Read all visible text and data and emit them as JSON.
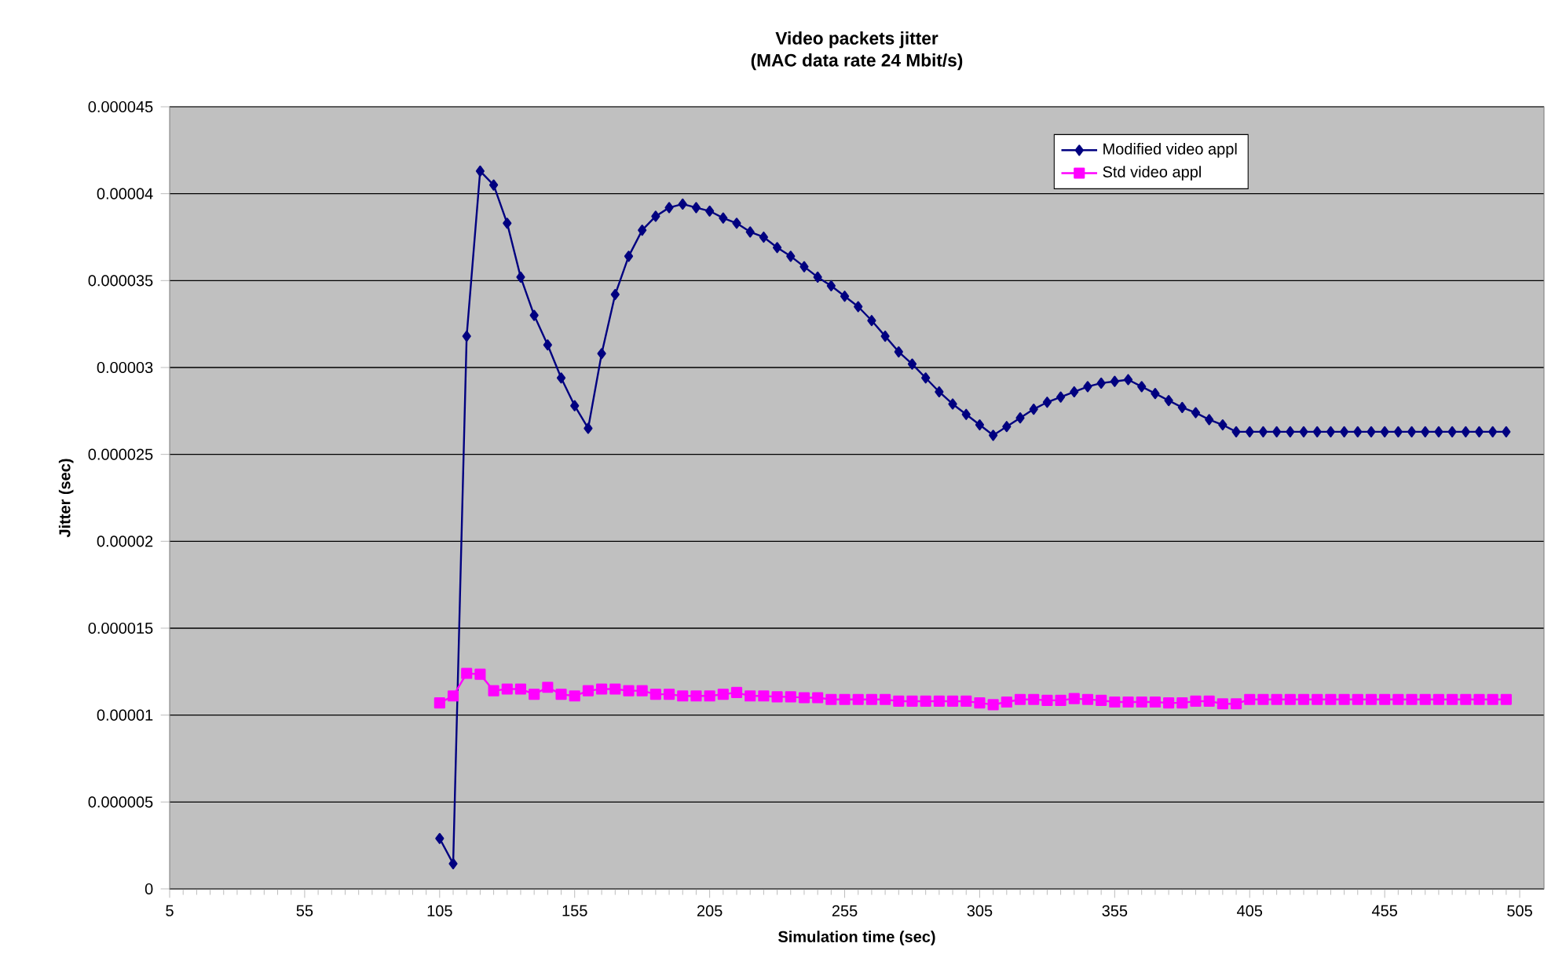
{
  "chart_data": {
    "type": "line",
    "title": "Video packets jitter",
    "subtitle": "(MAC data rate 24 Mbit/s)",
    "xlabel": "Simulation time (sec)",
    "ylabel": "Jitter (sec)",
    "x": [
      105,
      110,
      115,
      120,
      125,
      130,
      135,
      140,
      145,
      150,
      155,
      160,
      165,
      170,
      175,
      180,
      185,
      190,
      195,
      200,
      205,
      210,
      215,
      220,
      225,
      230,
      235,
      240,
      245,
      250,
      255,
      260,
      265,
      270,
      275,
      280,
      285,
      290,
      295,
      300,
      305,
      310,
      315,
      320,
      325,
      330,
      335,
      340,
      345,
      350,
      355,
      360,
      365,
      370,
      375,
      380,
      385,
      390,
      395,
      400,
      405,
      410,
      415,
      420,
      425,
      430,
      435,
      440,
      445,
      450,
      455,
      460,
      465,
      470,
      475,
      480,
      485,
      490,
      495,
      500
    ],
    "series": [
      {
        "name": "Modified video appl",
        "color": "#000080",
        "marker": "diamond",
        "values": [
          2.9e-06,
          1.45e-06,
          3.18e-05,
          4.13e-05,
          4.05e-05,
          3.83e-05,
          3.52e-05,
          3.3e-05,
          3.13e-05,
          2.94e-05,
          2.78e-05,
          2.65e-05,
          3.08e-05,
          3.42e-05,
          3.64e-05,
          3.79e-05,
          3.87e-05,
          3.92e-05,
          3.94e-05,
          3.92e-05,
          3.9e-05,
          3.86e-05,
          3.83e-05,
          3.78e-05,
          3.75e-05,
          3.69e-05,
          3.64e-05,
          3.58e-05,
          3.52e-05,
          3.47e-05,
          3.41e-05,
          3.35e-05,
          3.27e-05,
          3.18e-05,
          3.09e-05,
          3.02e-05,
          2.94e-05,
          2.86e-05,
          2.79e-05,
          2.73e-05,
          2.67e-05,
          2.61e-05,
          2.66e-05,
          2.71e-05,
          2.76e-05,
          2.8e-05,
          2.83e-05,
          2.86e-05,
          2.89e-05,
          2.91e-05,
          2.92e-05,
          2.93e-05,
          2.89e-05,
          2.85e-05,
          2.81e-05,
          2.77e-05,
          2.74e-05,
          2.7e-05,
          2.67e-05,
          2.63e-05,
          2.63e-05,
          2.63e-05,
          2.63e-05,
          2.63e-05,
          2.63e-05,
          2.63e-05,
          2.63e-05,
          2.63e-05,
          2.63e-05,
          2.63e-05,
          2.63e-05,
          2.63e-05,
          2.63e-05,
          2.63e-05,
          2.63e-05,
          2.63e-05,
          2.63e-05,
          2.63e-05,
          2.63e-05,
          2.63e-05
        ]
      },
      {
        "name": "Std video appl",
        "color": "#ff00ff",
        "marker": "square",
        "values": [
          1.07e-05,
          1.11e-05,
          1.24e-05,
          1.235e-05,
          1.14e-05,
          1.15e-05,
          1.15e-05,
          1.12e-05,
          1.16e-05,
          1.12e-05,
          1.11e-05,
          1.14e-05,
          1.15e-05,
          1.15e-05,
          1.14e-05,
          1.14e-05,
          1.12e-05,
          1.12e-05,
          1.11e-05,
          1.11e-05,
          1.11e-05,
          1.12e-05,
          1.13e-05,
          1.11e-05,
          1.11e-05,
          1.105e-05,
          1.105e-05,
          1.1e-05,
          1.1e-05,
          1.09e-05,
          1.09e-05,
          1.09e-05,
          1.09e-05,
          1.09e-05,
          1.08e-05,
          1.08e-05,
          1.08e-05,
          1.08e-05,
          1.08e-05,
          1.08e-05,
          1.07e-05,
          1.06e-05,
          1.075e-05,
          1.09e-05,
          1.09e-05,
          1.085e-05,
          1.085e-05,
          1.095e-05,
          1.09e-05,
          1.085e-05,
          1.075e-05,
          1.075e-05,
          1.075e-05,
          1.075e-05,
          1.07e-05,
          1.07e-05,
          1.08e-05,
          1.08e-05,
          1.065e-05,
          1.065e-05,
          1.09e-05,
          1.09e-05,
          1.09e-05,
          1.09e-05,
          1.09e-05,
          1.09e-05,
          1.09e-05,
          1.09e-05,
          1.09e-05,
          1.09e-05,
          1.09e-05,
          1.09e-05,
          1.09e-05,
          1.09e-05,
          1.09e-05,
          1.09e-05,
          1.09e-05,
          1.09e-05,
          1.09e-05,
          1.09e-05
        ]
      }
    ],
    "xlim": [
      5,
      514
    ],
    "xticks": [
      5,
      55,
      105,
      155,
      205,
      255,
      305,
      355,
      405,
      455,
      505
    ],
    "ylim": [
      0,
      4.5e-05
    ],
    "yticks": [
      {
        "value": 0,
        "label": "0"
      },
      {
        "value": 5e-06,
        "label": "0.000005"
      },
      {
        "value": 1e-05,
        "label": "0.00001"
      },
      {
        "value": 1.5e-05,
        "label": "0.000015"
      },
      {
        "value": 2e-05,
        "label": "0.00002"
      },
      {
        "value": 2.5e-05,
        "label": "0.000025"
      },
      {
        "value": 3e-05,
        "label": "0.00003"
      },
      {
        "value": 3.5e-05,
        "label": "0.000035"
      },
      {
        "value": 4e-05,
        "label": "0.00004"
      },
      {
        "value": 4.5e-05,
        "label": "0.000045"
      }
    ],
    "grid": "y",
    "legend": "top right",
    "line_style": "solid"
  }
}
